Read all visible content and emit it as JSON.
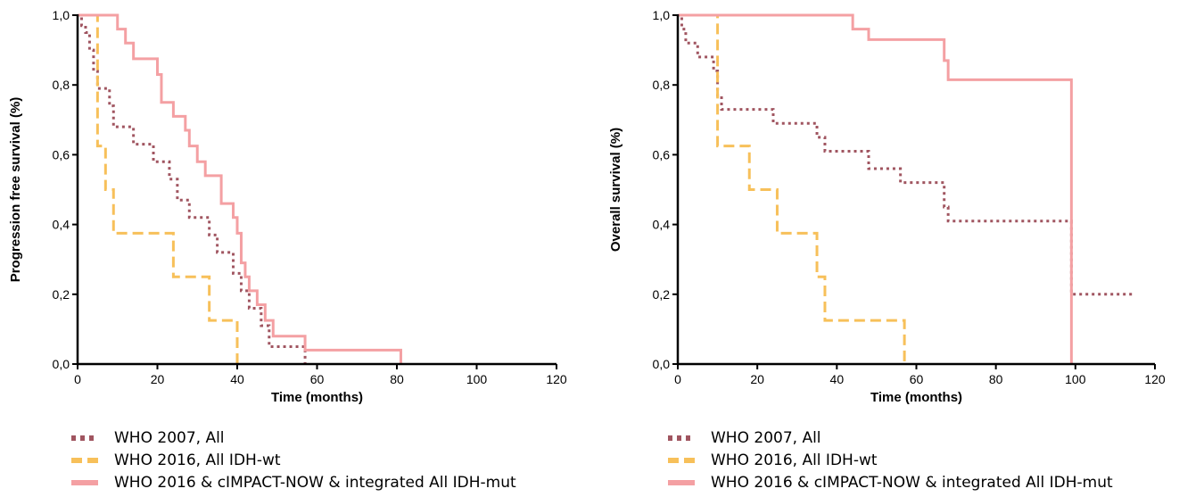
{
  "colors": {
    "dotted": "#a05560",
    "dashed": "#f7c05a",
    "solid": "#f4a0a3",
    "axis": "#000000"
  },
  "chart_data": [
    {
      "type": "line",
      "subtype": "kaplan-meier step",
      "title": "",
      "xlabel": "Time (months)",
      "ylabel": "Progression free survival (%)",
      "xlim": [
        0,
        120
      ],
      "ylim": [
        0,
        1.0
      ],
      "xticks": [
        "0",
        "20",
        "40",
        "60",
        "80",
        "100",
        "120"
      ],
      "yticks": [
        "0,0",
        "0,2",
        "0,4",
        "0,6",
        "0,8",
        "1,0"
      ],
      "grid": false,
      "legend_position": "below",
      "series": [
        {
          "name": "WHO 2007, All",
          "style": "dotted",
          "x": [
            0,
            1,
            2,
            3,
            4,
            5,
            6,
            8,
            9,
            14,
            19,
            23,
            25,
            28,
            33,
            35,
            39,
            41,
            43,
            46,
            48,
            50,
            57
          ],
          "y": [
            1.0,
            0.97,
            0.95,
            0.9,
            0.84,
            0.79,
            0.79,
            0.74,
            0.68,
            0.63,
            0.58,
            0.53,
            0.47,
            0.42,
            0.37,
            0.32,
            0.26,
            0.21,
            0.16,
            0.11,
            0.05,
            0.05,
            0.0
          ]
        },
        {
          "name": "WHO 2016, All IDH-wt",
          "style": "dashed",
          "x": [
            0,
            4,
            5,
            7,
            9,
            24,
            33,
            40
          ],
          "y": [
            1.0,
            1.0,
            0.625,
            0.5,
            0.375,
            0.25,
            0.125,
            0.0
          ]
        },
        {
          "name": "WHO 2016 & cIMPACT-NOW & integrated All IDH-mut",
          "style": "solid",
          "x": [
            0,
            10,
            12,
            14,
            20,
            21,
            24,
            27,
            28,
            30,
            32,
            36,
            39,
            40,
            41,
            42,
            43,
            45,
            47,
            49,
            57,
            81
          ],
          "y": [
            1.0,
            0.96,
            0.92,
            0.875,
            0.83,
            0.75,
            0.71,
            0.67,
            0.625,
            0.58,
            0.54,
            0.46,
            0.42,
            0.375,
            0.29,
            0.25,
            0.21,
            0.17,
            0.125,
            0.08,
            0.04,
            0.0
          ]
        }
      ]
    },
    {
      "type": "line",
      "subtype": "kaplan-meier step",
      "title": "",
      "xlabel": "Time (months)",
      "ylabel": "Overall survival (%)",
      "xlim": [
        0,
        120
      ],
      "ylim": [
        0,
        1.0
      ],
      "xticks": [
        "0",
        "20",
        "40",
        "60",
        "80",
        "100",
        "120"
      ],
      "yticks": [
        "0,0",
        "0,2",
        "0,4",
        "0,6",
        "0,8",
        "1,0"
      ],
      "grid": false,
      "legend_position": "below",
      "series": [
        {
          "name": "WHO 2007, All",
          "style": "dotted",
          "x": [
            0,
            1,
            2,
            5,
            9,
            10,
            11,
            24,
            35,
            37,
            40,
            48,
            56,
            59,
            67,
            68,
            99,
            115
          ],
          "y": [
            1.0,
            0.96,
            0.92,
            0.88,
            0.84,
            0.77,
            0.73,
            0.69,
            0.65,
            0.61,
            0.61,
            0.56,
            0.52,
            0.52,
            0.45,
            0.41,
            0.2,
            0.2
          ]
        },
        {
          "name": "WHO 2016, All IDH-wt",
          "style": "dashed",
          "x": [
            0,
            10,
            18,
            25,
            35,
            37,
            57
          ],
          "y": [
            1.0,
            0.625,
            0.5,
            0.375,
            0.25,
            0.125,
            0.0
          ]
        },
        {
          "name": "WHO 2016 & cIMPACT-NOW & integrated All IDH-mut",
          "style": "solid",
          "x": [
            0,
            44,
            48,
            67,
            68,
            99
          ],
          "y": [
            1.0,
            0.96,
            0.93,
            0.87,
            0.815,
            0.0
          ]
        }
      ]
    }
  ]
}
